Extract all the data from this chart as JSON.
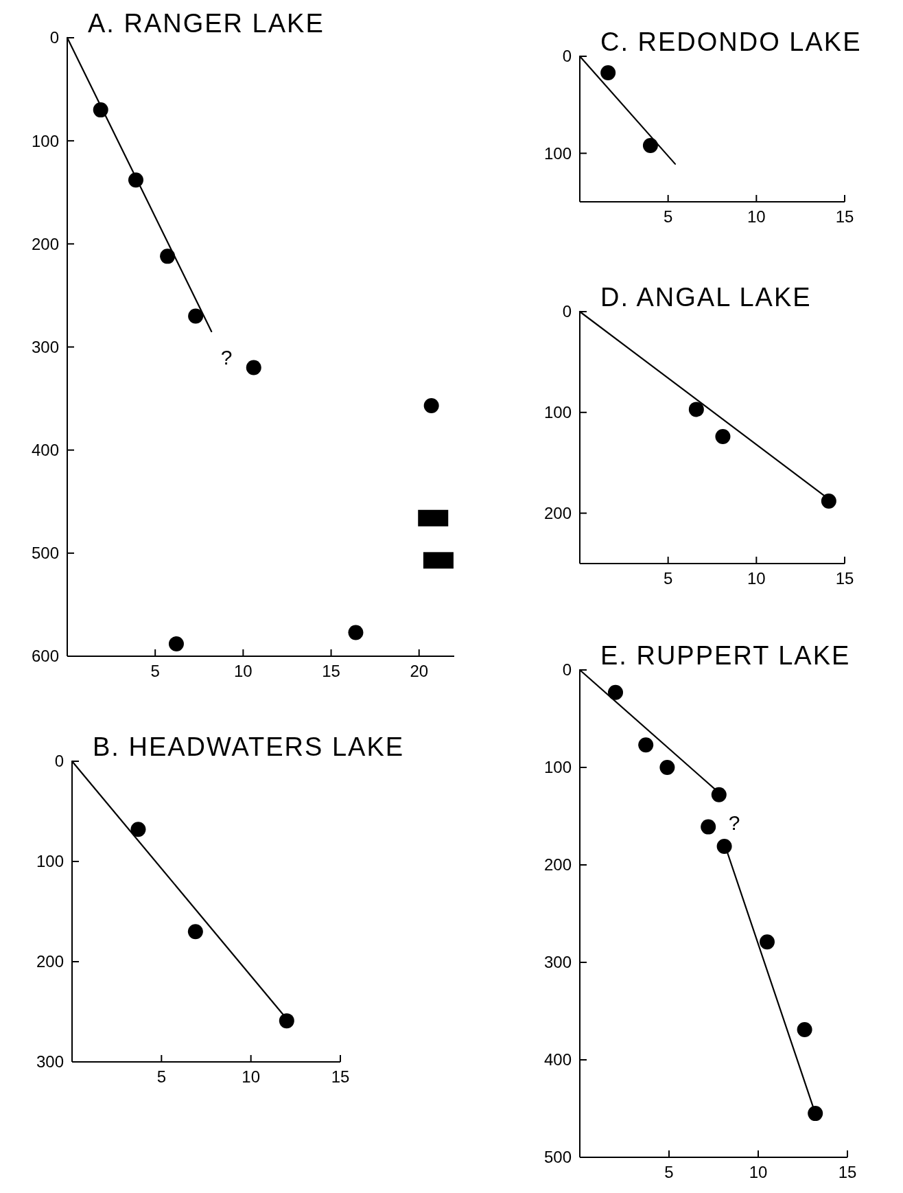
{
  "chart_data": [
    {
      "type": "scatter",
      "title": "A. RANGER LAKE",
      "xlim": [
        0,
        22
      ],
      "ylim": [
        600,
        0
      ],
      "xticks": [
        5,
        10,
        15,
        20
      ],
      "yticks": [
        0,
        100,
        200,
        300,
        400,
        500,
        600
      ],
      "series": [
        {
          "color": "#000000",
          "marker": "circle",
          "x": [
            1.9,
            3.9,
            5.7,
            7.3,
            10.6,
            20.7,
            6.2,
            16.4
          ],
          "values": [
            70,
            138,
            212,
            270,
            320,
            357,
            588,
            577
          ]
        },
        {
          "color": "#000000",
          "marker": "square",
          "x": [
            20.8,
            21.1
          ],
          "values": [
            466,
            507
          ]
        },
        {
          "type": "line",
          "color": "#000000",
          "x": [
            0,
            8.2
          ],
          "values": [
            0,
            285
          ]
        }
      ],
      "annotations": [
        "?"
      ]
    },
    {
      "type": "scatter",
      "title": "B. HEADWATERS LAKE",
      "xlim": [
        0,
        15
      ],
      "ylim": [
        300,
        0
      ],
      "xticks": [
        5,
        10,
        15
      ],
      "yticks": [
        0,
        100,
        200,
        300
      ],
      "series": [
        {
          "color": "#000000",
          "marker": "circle",
          "x": [
            3.7,
            6.9,
            12.0
          ],
          "values": [
            68,
            170,
            259
          ]
        },
        {
          "type": "line",
          "color": "#000000",
          "x": [
            0,
            12.0
          ],
          "values": [
            0,
            257
          ]
        }
      ]
    },
    {
      "type": "scatter",
      "title": "C. REDONDO LAKE",
      "xlim": [
        0,
        15
      ],
      "ylim": [
        150,
        0
      ],
      "xticks": [
        5,
        10,
        15
      ],
      "yticks": [
        0,
        100
      ],
      "series": [
        {
          "color": "#000000",
          "marker": "circle",
          "x": [
            1.6,
            4.0
          ],
          "values": [
            17,
            92
          ]
        },
        {
          "type": "line",
          "color": "#000000",
          "x": [
            0,
            5.4
          ],
          "values": [
            0,
            111
          ]
        }
      ]
    },
    {
      "type": "scatter",
      "title": "D. ANGAL LAKE",
      "xlim": [
        0,
        15
      ],
      "ylim": [
        250,
        0
      ],
      "xticks": [
        5,
        10,
        15
      ],
      "yticks": [
        0,
        100,
        200
      ],
      "series": [
        {
          "color": "#000000",
          "marker": "circle",
          "x": [
            6.6,
            8.1,
            14.1
          ],
          "values": [
            97,
            124,
            188
          ]
        },
        {
          "type": "line",
          "color": "#000000",
          "x": [
            0,
            14.1
          ],
          "values": [
            0,
            186
          ]
        }
      ]
    },
    {
      "type": "scatter",
      "title": "E. RUPPERT LAKE",
      "xlim": [
        0,
        15
      ],
      "ylim": [
        500,
        0
      ],
      "xticks": [
        5,
        10,
        15
      ],
      "yticks": [
        0,
        100,
        200,
        300,
        400,
        500
      ],
      "series": [
        {
          "color": "#000000",
          "marker": "circle",
          "x": [
            2.0,
            3.7,
            4.9,
            7.8,
            7.2,
            8.1,
            10.5,
            12.6,
            13.2
          ],
          "values": [
            23,
            77,
            100,
            128,
            161,
            181,
            279,
            369,
            455
          ]
        },
        {
          "type": "line",
          "color": "#000000",
          "x": [
            0,
            7.8
          ],
          "values": [
            0,
            126
          ]
        },
        {
          "type": "line",
          "color": "#000000",
          "x": [
            8.1,
            13.2
          ],
          "values": [
            178,
            455
          ]
        }
      ],
      "annotations": [
        "?"
      ]
    }
  ]
}
